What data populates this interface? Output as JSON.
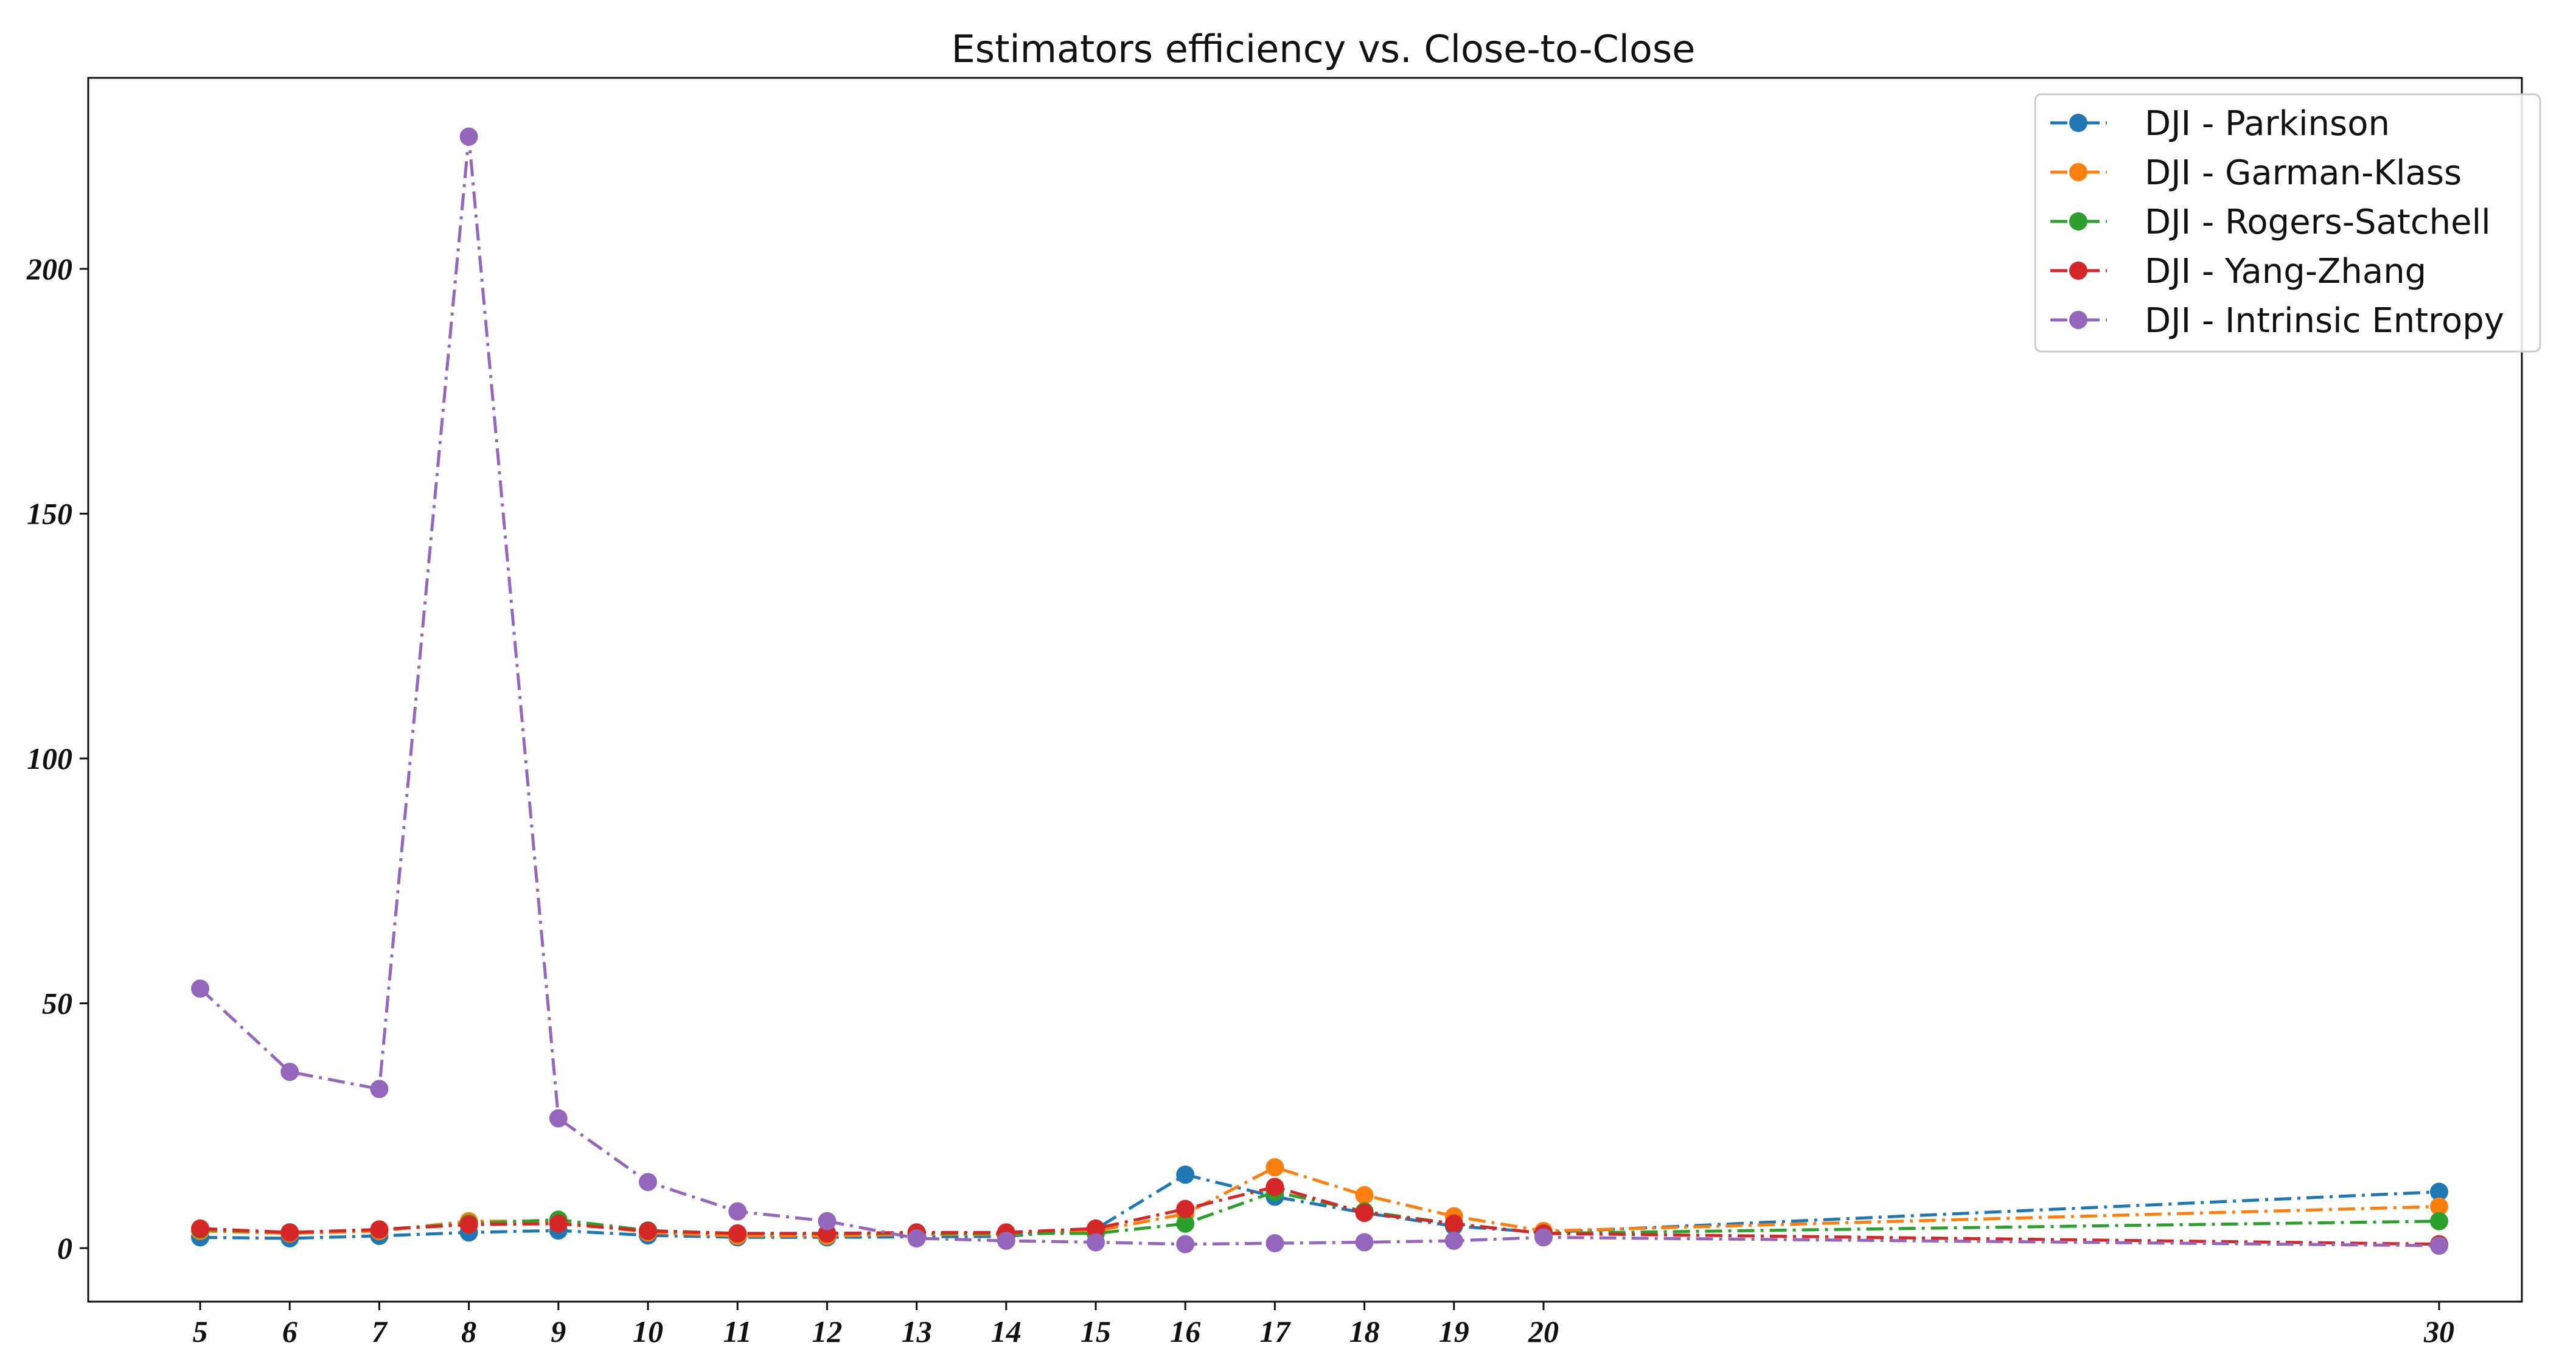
{
  "chart_data": {
    "type": "line",
    "title": "Estimators efficiency vs. Close-to-Close",
    "xlabel": "",
    "ylabel": "",
    "x": [
      5,
      6,
      7,
      8,
      9,
      10,
      11,
      12,
      13,
      14,
      15,
      16,
      17,
      18,
      19,
      20,
      30
    ],
    "xticks": [
      "5",
      "6",
      "7",
      "8",
      "9",
      "10",
      "11",
      "12",
      "13",
      "14",
      "15",
      "16",
      "17",
      "18",
      "19",
      "20",
      "30"
    ],
    "yticks": [
      0,
      50,
      100,
      150,
      200
    ],
    "ytick_labels": [
      "0",
      "50",
      "100",
      "150",
      "200"
    ],
    "ylim": [
      -11,
      238
    ],
    "legend_position": "top-right",
    "grid": false,
    "series": [
      {
        "name": "DJI - Parkinson",
        "color": "#1f77b4",
        "values": [
          2.2,
          2.0,
          2.5,
          3.2,
          3.6,
          2.6,
          2.2,
          2.2,
          2.3,
          2.4,
          3.9,
          15.0,
          10.5,
          7.2,
          4.5,
          3.2,
          11.5
        ]
      },
      {
        "name": "DJI - Garman-Klass",
        "color": "#ff7f0e",
        "values": [
          3.5,
          3.0,
          3.5,
          5.5,
          5.5,
          3.2,
          2.5,
          2.5,
          2.8,
          2.8,
          3.5,
          7.0,
          16.5,
          10.8,
          6.5,
          3.5,
          8.5
        ]
      },
      {
        "name": "DJI - Rogers-Satchell",
        "color": "#2ca02c",
        "values": [
          3.8,
          3.2,
          3.8,
          5.0,
          5.8,
          3.6,
          3.0,
          3.0,
          3.0,
          3.0,
          3.0,
          5.0,
          11.5,
          7.5,
          5.0,
          3.0,
          5.5
        ]
      },
      {
        "name": "DJI - Yang-Zhang",
        "color": "#d62728",
        "values": [
          4.0,
          3.2,
          3.8,
          4.8,
          5.0,
          3.5,
          3.0,
          3.0,
          3.2,
          3.2,
          4.0,
          8.0,
          12.5,
          7.2,
          5.0,
          3.0,
          0.8
        ]
      },
      {
        "name": "DJI - Intrinsic Entropy",
        "color": "#9467bd",
        "values": [
          53.0,
          36.0,
          32.5,
          227.0,
          26.5,
          13.5,
          7.5,
          5.5,
          2.0,
          1.5,
          1.2,
          0.8,
          1.0,
          1.2,
          1.5,
          2.2,
          0.5
        ]
      }
    ]
  }
}
